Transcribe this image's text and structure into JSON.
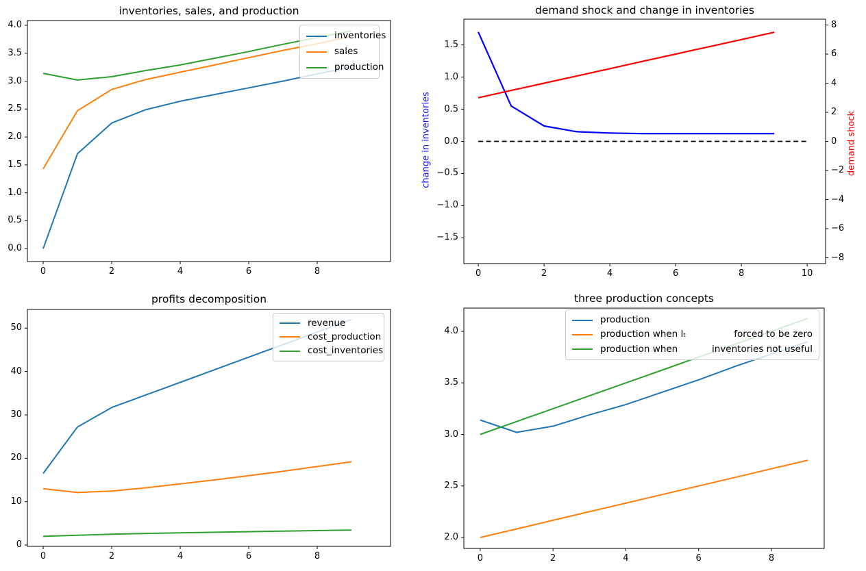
{
  "figure": {
    "background": "#ffffff",
    "rows": 2,
    "cols": 2
  },
  "chart_data": [
    {
      "key": "inv_sales_prod",
      "type": "line",
      "title": "inventories, sales, and production",
      "x": [
        0,
        1,
        2,
        3,
        4,
        5,
        6,
        7,
        8,
        9
      ],
      "xlim": [
        -0.46,
        10.14
      ],
      "ylim": [
        -0.23,
        4.085
      ],
      "grid": false,
      "legend_position": "upper right",
      "xticks": {
        "values": [
          0,
          2,
          4,
          6,
          8
        ],
        "labels": [
          "0",
          "2",
          "4",
          "6",
          "8"
        ]
      },
      "yticks": {
        "values": [
          0,
          0.5,
          1,
          1.5,
          2,
          2.5,
          3,
          3.5,
          4
        ],
        "labels": [
          "0.0",
          "0.5",
          "1.0",
          "1.5",
          "2.0",
          "2.5",
          "3.0",
          "3.5",
          "4.0"
        ]
      },
      "legend_items": [
        "inventories",
        "sales",
        "production"
      ],
      "series": [
        {
          "name": "inventories",
          "color": "#1f77b4",
          "values": [
            0.0,
            1.7,
            2.25,
            2.49,
            2.64,
            2.76,
            2.88,
            3.0,
            3.13,
            3.25
          ]
        },
        {
          "name": "sales",
          "color": "#ff7f0e",
          "values": [
            1.43,
            2.47,
            2.85,
            3.03,
            3.16,
            3.29,
            3.42,
            3.55,
            3.67,
            3.8
          ]
        },
        {
          "name": "production",
          "color": "#2ca02c",
          "values": [
            3.14,
            3.02,
            3.08,
            3.19,
            3.29,
            3.41,
            3.53,
            3.66,
            3.78,
            3.9
          ]
        }
      ]
    },
    {
      "key": "demand_shock",
      "type": "line",
      "title": "demand shock and change in inventories",
      "x": [
        0,
        1,
        2,
        3,
        4,
        5,
        6,
        7,
        8,
        9
      ],
      "xlim": [
        -0.44,
        10.56
      ],
      "ylim": [
        -1.9,
        1.9
      ],
      "ylim_right": [
        -8.4,
        8.4
      ],
      "grid": false,
      "xticks": {
        "values": [
          0,
          2,
          4,
          6,
          8,
          10
        ],
        "labels": [
          "0",
          "2",
          "4",
          "6",
          "8",
          "10"
        ]
      },
      "yticks": {
        "values": [
          1.5,
          1,
          0.5,
          0,
          -0.5,
          -1,
          -1.5
        ],
        "labels": [
          "1.5",
          "1.0",
          "0.5",
          "0.0",
          "−0.5",
          "−1.0",
          "−1.5"
        ]
      },
      "yticks_right": {
        "values": [
          8,
          6,
          4,
          2,
          0,
          -2,
          -4,
          -6,
          -8
        ],
        "labels": [
          "8",
          "6",
          "4",
          "2",
          "0",
          "−2",
          "−4",
          "−6",
          "−8"
        ]
      },
      "ylabel_left": {
        "text": "change in inventories",
        "color": "#1414ff"
      },
      "ylabel_right": {
        "text": "demand shock",
        "color": "#ff0000"
      },
      "series": [
        {
          "name": "change in inventories",
          "color": "#0000ff",
          "width": 2.2,
          "values": [
            1.7,
            0.55,
            0.24,
            0.15,
            0.13,
            0.12,
            0.12,
            0.12,
            0.12,
            0.12
          ]
        },
        {
          "name": "demand shock",
          "color": "#ff0000",
          "width": 2.2,
          "axis": "right",
          "values": [
            3.0,
            3.5,
            4.0,
            4.5,
            5.0,
            5.5,
            6.0,
            6.5,
            7.0,
            7.5
          ]
        },
        {
          "name": "zero line",
          "color": "#000000",
          "width": 1.8,
          "dash": "7 4.5",
          "x": [
            0,
            10
          ],
          "values": [
            0,
            0
          ]
        }
      ]
    },
    {
      "key": "profits",
      "type": "line",
      "title": "profits decomposition",
      "x": [
        0,
        1,
        2,
        3,
        4,
        5,
        6,
        7,
        8,
        9
      ],
      "xlim": [
        -0.46,
        10.14
      ],
      "ylim": [
        -0.3,
        54.3
      ],
      "grid": false,
      "legend_position": "upper right",
      "xticks": {
        "values": [
          0,
          2,
          4,
          6,
          8
        ],
        "labels": [
          "0",
          "2",
          "4",
          "6",
          "8"
        ]
      },
      "yticks": {
        "values": [
          0,
          10,
          20,
          30,
          40,
          50
        ],
        "labels": [
          "0",
          "10",
          "20",
          "30",
          "40",
          "50"
        ]
      },
      "legend_items": [
        "revenue",
        "cost_production",
        "cost_inventories"
      ],
      "series": [
        {
          "name": "revenue",
          "color": "#1f77b4",
          "values": [
            16.5,
            27.2,
            31.7,
            34.6,
            37.5,
            40.4,
            43.3,
            46.2,
            49.1,
            52.0
          ]
        },
        {
          "name": "cost_production",
          "color": "#ff7f0e",
          "values": [
            13.0,
            12.1,
            12.45,
            13.2,
            14.1,
            15.0,
            16.0,
            17.0,
            18.1,
            19.2
          ]
        },
        {
          "name": "cost_inventories",
          "color": "#2ca02c",
          "values": [
            2.0,
            2.25,
            2.5,
            2.68,
            2.82,
            2.95,
            3.07,
            3.2,
            3.33,
            3.45
          ]
        }
      ]
    },
    {
      "key": "three_prod",
      "type": "line",
      "title": "three production concepts",
      "x": [
        0,
        1,
        2,
        3,
        4,
        5,
        6,
        7,
        8,
        9
      ],
      "xlim": [
        -0.45,
        9.45
      ],
      "ylim": [
        1.894,
        4.226
      ],
      "grid": false,
      "legend_position": "upper right",
      "xticks": {
        "values": [
          0,
          2,
          4,
          6,
          8
        ],
        "labels": [
          "0",
          "2",
          "4",
          "6",
          "8"
        ]
      },
      "yticks": {
        "values": [
          2,
          2.5,
          3,
          3.5,
          4
        ],
        "labels": [
          "2.0",
          "2.5",
          "3.0",
          "3.5",
          "4.0"
        ]
      },
      "legend_rows": [
        {
          "left": "production",
          "right": ""
        },
        {
          "left": "production when  Iₜ",
          "right": "forced to be zero"
        },
        {
          "left": "production when",
          "right": "inventories not useful"
        }
      ],
      "series": [
        {
          "name": "production",
          "color": "#1f77b4",
          "values": [
            3.14,
            3.02,
            3.08,
            3.19,
            3.29,
            3.41,
            3.53,
            3.66,
            3.78,
            3.9
          ]
        },
        {
          "name": "production when Iₜ forced to be zero",
          "color": "#ff7f0e",
          "values": [
            2.0,
            2.083,
            2.167,
            2.25,
            2.333,
            2.417,
            2.5,
            2.583,
            2.667,
            2.75
          ]
        },
        {
          "name": "production when inventories not useful",
          "color": "#2ca02c",
          "values": [
            3.0,
            3.125,
            3.25,
            3.375,
            3.5,
            3.625,
            3.75,
            3.875,
            4.0,
            4.127
          ]
        }
      ]
    }
  ]
}
